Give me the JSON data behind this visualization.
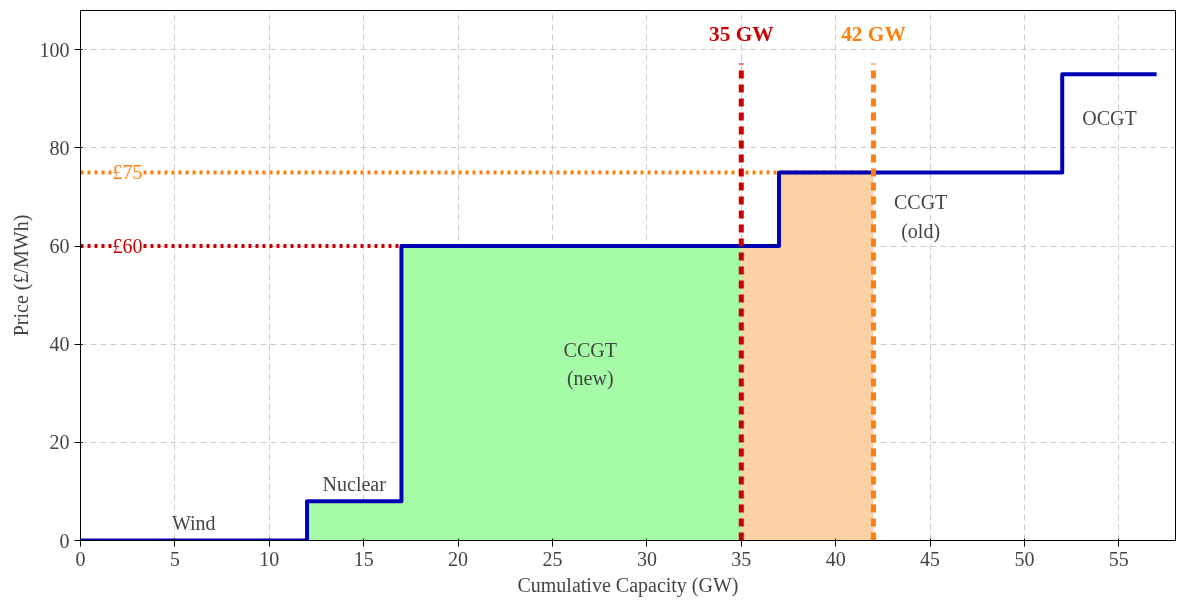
{
  "chart_data": {
    "type": "step",
    "xlabel": "Cumulative Capacity (GW)",
    "ylabel": "Price (£/MWh)",
    "series": [
      {
        "type": "area",
        "color": "#a6fca6",
        "x": [
          12,
          17,
          17,
          35
        ],
        "values": [
          8,
          8,
          60,
          60
        ]
      },
      {
        "type": "area",
        "color": "#fcd1a6",
        "x": [
          35,
          37,
          37,
          42
        ],
        "values": [
          60,
          60,
          75,
          75
        ]
      },
      {
        "color": "#0000b3",
        "x": [
          0,
          12,
          17,
          37,
          52,
          57
        ],
        "values": [
          0,
          8,
          60,
          75,
          95,
          95
        ]
      }
    ],
    "xlim": [
      0,
      58
    ],
    "ylim": [
      0,
      108
    ],
    "xticks": [
      0,
      5,
      10,
      15,
      20,
      25,
      30,
      35,
      40,
      45,
      50,
      55
    ],
    "yticks": [
      0,
      20,
      40,
      60,
      80,
      100
    ],
    "grid": true,
    "ref_lines": [
      {
        "axis": "y",
        "value": 60,
        "label": "£60",
        "color": "#cc0000",
        "line_style": "dotted"
      },
      {
        "axis": "y",
        "value": 75,
        "label": "£75",
        "color": "#ff7f0e",
        "line_style": "dotted"
      },
      {
        "axis": "x",
        "value": 35,
        "label": "35 GW",
        "color": "#cc0000",
        "line_style": "dashed"
      },
      {
        "axis": "x",
        "value": 42,
        "label": "42 GW",
        "color": "#ff7f0e",
        "line_style": "dashed"
      }
    ],
    "annotations": [
      "Wind",
      "Nuclear",
      "CCGT\n(new)",
      "CCGT\n(old)",
      "OCGT"
    ]
  }
}
